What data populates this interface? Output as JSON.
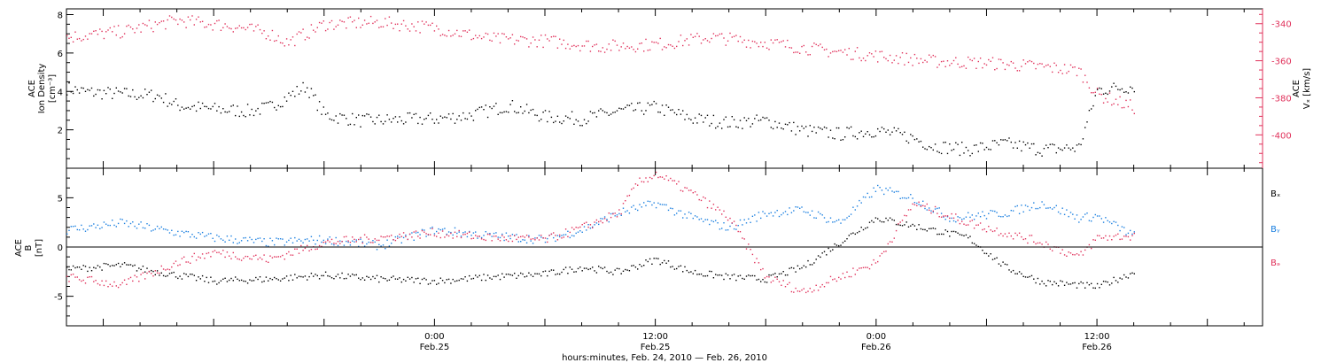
{
  "colors": {
    "black": "#000000",
    "red": "#e0305a",
    "blue": "#1a7fe0",
    "axis": "#000000"
  },
  "time_axis": {
    "xlabel": "hours:minutes, Feb. 24, 2010 — Feb. 26, 2010",
    "xlim": [
      "2010-02-24 04:00",
      "2010-02-26 21:00"
    ],
    "data_end": "2010-02-26 14:00",
    "major_ticks": [
      {
        "time": "2010-02-25 00:00",
        "label": "0:00",
        "sublabel": "Feb.25"
      },
      {
        "time": "2010-02-25 12:00",
        "label": "12:00",
        "sublabel": "Feb.25"
      },
      {
        "time": "2010-02-26 00:00",
        "label": "0:00",
        "sublabel": "Feb.26"
      },
      {
        "time": "2010-02-26 12:00",
        "label": "12:00",
        "sublabel": "Feb.26"
      }
    ],
    "minor_tick_hours": 2
  },
  "chart_data": [
    {
      "type": "scatter",
      "title": "",
      "ylabel_lines": [
        "ACE",
        "Ion Density"
      ],
      "yunit": "[cm⁻³]",
      "ylim": [
        0,
        8.3
      ],
      "yticks": [
        2,
        4,
        6,
        8
      ],
      "y2label_lines": [
        "ACE",
        "Vₓ [km/s]"
      ],
      "y2lim": [
        -418,
        -332
      ],
      "y2ticks": [
        -340,
        -360,
        -380,
        -400
      ],
      "series": [
        {
          "axis": "left",
          "color": "black",
          "points": [
            [
              "2010-02-24 04:00",
              4.2
            ],
            [
              "2010-02-24 05:00",
              4.0
            ],
            [
              "2010-02-24 07:00",
              3.9
            ],
            [
              "2010-02-24 09:00",
              3.8
            ],
            [
              "2010-02-24 10:00",
              3.3
            ],
            [
              "2010-02-24 12:00",
              3.1
            ],
            [
              "2010-02-24 14:00",
              3.0
            ],
            [
              "2010-02-24 15:00",
              3.2
            ],
            [
              "2010-02-24 17:00",
              4.3
            ],
            [
              "2010-02-24 18:00",
              2.8
            ],
            [
              "2010-02-24 20:00",
              2.5
            ],
            [
              "2010-02-25 00:00",
              2.6
            ],
            [
              "2010-02-25 02:00",
              2.8
            ],
            [
              "2010-02-25 04:00",
              3.3
            ],
            [
              "2010-02-25 06:00",
              2.7
            ],
            [
              "2010-02-25 08:00",
              2.6
            ],
            [
              "2010-02-25 10:00",
              3.0
            ],
            [
              "2010-02-25 12:00",
              3.2
            ],
            [
              "2010-02-25 14:00",
              2.6
            ],
            [
              "2010-02-25 16:00",
              2.4
            ],
            [
              "2010-02-25 18:00",
              2.5
            ],
            [
              "2010-02-25 20:00",
              2.0
            ],
            [
              "2010-02-25 22:00",
              1.8
            ],
            [
              "2010-02-26 00:00",
              2.0
            ],
            [
              "2010-02-26 02:00",
              1.6
            ],
            [
              "2010-02-26 03:00",
              1.2
            ],
            [
              "2010-02-26 05:00",
              1.0
            ],
            [
              "2010-02-26 07:00",
              1.3
            ],
            [
              "2010-02-26 09:00",
              1.0
            ],
            [
              "2010-02-26 11:00",
              1.1
            ],
            [
              "2010-02-26 12:00",
              4.1
            ],
            [
              "2010-02-26 14:00",
              4.3
            ]
          ]
        },
        {
          "axis": "right",
          "color": "red",
          "points": [
            [
              "2010-02-24 04:00",
              -347
            ],
            [
              "2010-02-24 07:00",
              -344
            ],
            [
              "2010-02-24 10:00",
              -338
            ],
            [
              "2010-02-24 13:00",
              -341
            ],
            [
              "2010-02-24 15:00",
              -345
            ],
            [
              "2010-02-24 16:00",
              -350
            ],
            [
              "2010-02-24 18:00",
              -340
            ],
            [
              "2010-02-24 21:00",
              -339
            ],
            [
              "2010-02-25 00:00",
              -342
            ],
            [
              "2010-02-25 03:00",
              -348
            ],
            [
              "2010-02-25 06:00",
              -349
            ],
            [
              "2010-02-25 09:00",
              -352
            ],
            [
              "2010-02-25 12:00",
              -351
            ],
            [
              "2010-02-25 15:00",
              -347
            ],
            [
              "2010-02-25 18:00",
              -350
            ],
            [
              "2010-02-25 21:00",
              -354
            ],
            [
              "2010-02-26 00:00",
              -357
            ],
            [
              "2010-02-26 03:00",
              -360
            ],
            [
              "2010-02-26 06:00",
              -361
            ],
            [
              "2010-02-26 09:00",
              -363
            ],
            [
              "2010-02-26 11:00",
              -365
            ],
            [
              "2010-02-26 12:00",
              -378
            ],
            [
              "2010-02-26 14:00",
              -385
            ]
          ]
        }
      ]
    },
    {
      "type": "scatter",
      "title": "",
      "ylabel_lines": [
        "ACE",
        "B"
      ],
      "yunit": "[nT]",
      "ylim": [
        -8,
        8
      ],
      "yticks": [
        5,
        0,
        -5
      ],
      "zero_line": true,
      "series": [
        {
          "name": "Bₓ",
          "color": "black",
          "points": [
            [
              "2010-02-24 04:00",
              -2.2
            ],
            [
              "2010-02-24 07:00",
              -1.8
            ],
            [
              "2010-02-24 09:00",
              -2.5
            ],
            [
              "2010-02-24 12:00",
              -3.4
            ],
            [
              "2010-02-24 15:00",
              -3.2
            ],
            [
              "2010-02-24 18:00",
              -2.8
            ],
            [
              "2010-02-24 21:00",
              -3.2
            ],
            [
              "2010-02-25 00:00",
              -3.4
            ],
            [
              "2010-02-25 03:00",
              -3.0
            ],
            [
              "2010-02-25 06:00",
              -2.7
            ],
            [
              "2010-02-25 08:00",
              -2.0
            ],
            [
              "2010-02-25 10:00",
              -2.5
            ],
            [
              "2010-02-25 12:00",
              -1.2
            ],
            [
              "2010-02-25 14:00",
              -2.5
            ],
            [
              "2010-02-25 16:00",
              -3.0
            ],
            [
              "2010-02-25 18:00",
              -3.2
            ],
            [
              "2010-02-25 20:00",
              -2.0
            ],
            [
              "2010-02-25 22:00",
              0.5
            ],
            [
              "2010-02-26 00:00",
              3.0
            ],
            [
              "2010-02-26 02:00",
              2.2
            ],
            [
              "2010-02-26 05:00",
              1.0
            ],
            [
              "2010-02-26 07:00",
              -2.0
            ],
            [
              "2010-02-26 09:00",
              -3.5
            ],
            [
              "2010-02-26 11:00",
              -3.8
            ],
            [
              "2010-02-26 12:00",
              -4.0
            ],
            [
              "2010-02-26 14:00",
              -2.5
            ]
          ]
        },
        {
          "name": "Bᵧ",
          "color": "blue",
          "points": [
            [
              "2010-02-24 04:00",
              1.8
            ],
            [
              "2010-02-24 07:00",
              2.5
            ],
            [
              "2010-02-24 10:00",
              1.5
            ],
            [
              "2010-02-24 12:00",
              1.0
            ],
            [
              "2010-02-24 15:00",
              0.5
            ],
            [
              "2010-02-24 18:00",
              0.8
            ],
            [
              "2010-02-24 21:00",
              0.2
            ],
            [
              "2010-02-25 00:00",
              1.8
            ],
            [
              "2010-02-25 03:00",
              1.2
            ],
            [
              "2010-02-25 06:00",
              0.8
            ],
            [
              "2010-02-25 08:00",
              1.8
            ],
            [
              "2010-02-25 10:00",
              3.5
            ],
            [
              "2010-02-25 12:00",
              4.5
            ],
            [
              "2010-02-25 14:00",
              3.0
            ],
            [
              "2010-02-25 16:00",
              2.0
            ],
            [
              "2010-02-25 18:00",
              3.5
            ],
            [
              "2010-02-25 20:00",
              3.8
            ],
            [
              "2010-02-25 22:00",
              2.5
            ],
            [
              "2010-02-26 00:00",
              6.0
            ],
            [
              "2010-02-26 02:00",
              5.0
            ],
            [
              "2010-02-26 04:00",
              3.0
            ],
            [
              "2010-02-26 07:00",
              3.5
            ],
            [
              "2010-02-26 09:00",
              4.5
            ],
            [
              "2010-02-26 11:00",
              3.0
            ],
            [
              "2010-02-26 12:00",
              3.2
            ],
            [
              "2010-02-26 14:00",
              1.2
            ]
          ]
        },
        {
          "name": "Bₔ",
          "color": "red",
          "points": [
            [
              "2010-02-24 04:00",
              -3.0
            ],
            [
              "2010-02-24 07:00",
              -3.8
            ],
            [
              "2010-02-24 10:00",
              -1.5
            ],
            [
              "2010-02-24 12:00",
              -0.5
            ],
            [
              "2010-02-24 15:00",
              -1.2
            ],
            [
              "2010-02-24 18:00",
              0.5
            ],
            [
              "2010-02-24 21:00",
              1.0
            ],
            [
              "2010-02-25 00:00",
              1.5
            ],
            [
              "2010-02-25 03:00",
              1.0
            ],
            [
              "2010-02-25 06:00",
              0.8
            ],
            [
              "2010-02-25 08:00",
              2.0
            ],
            [
              "2010-02-25 10:00",
              3.5
            ],
            [
              "2010-02-25 11:00",
              6.5
            ],
            [
              "2010-02-25 12:00",
              7.5
            ],
            [
              "2010-02-25 14:00",
              5.5
            ],
            [
              "2010-02-25 16:00",
              3.0
            ],
            [
              "2010-02-25 18:00",
              -3.0
            ],
            [
              "2010-02-25 20:00",
              -4.5
            ],
            [
              "2010-02-25 22:00",
              -3.0
            ],
            [
              "2010-02-26 00:00",
              -1.5
            ],
            [
              "2010-02-26 02:00",
              4.5
            ],
            [
              "2010-02-26 05:00",
              2.5
            ],
            [
              "2010-02-26 07:00",
              1.5
            ],
            [
              "2010-02-26 09:00",
              0.5
            ],
            [
              "2010-02-26 11:00",
              -1.0
            ],
            [
              "2010-02-26 12:00",
              1.0
            ],
            [
              "2010-02-26 14:00",
              1.2
            ]
          ]
        }
      ]
    }
  ]
}
